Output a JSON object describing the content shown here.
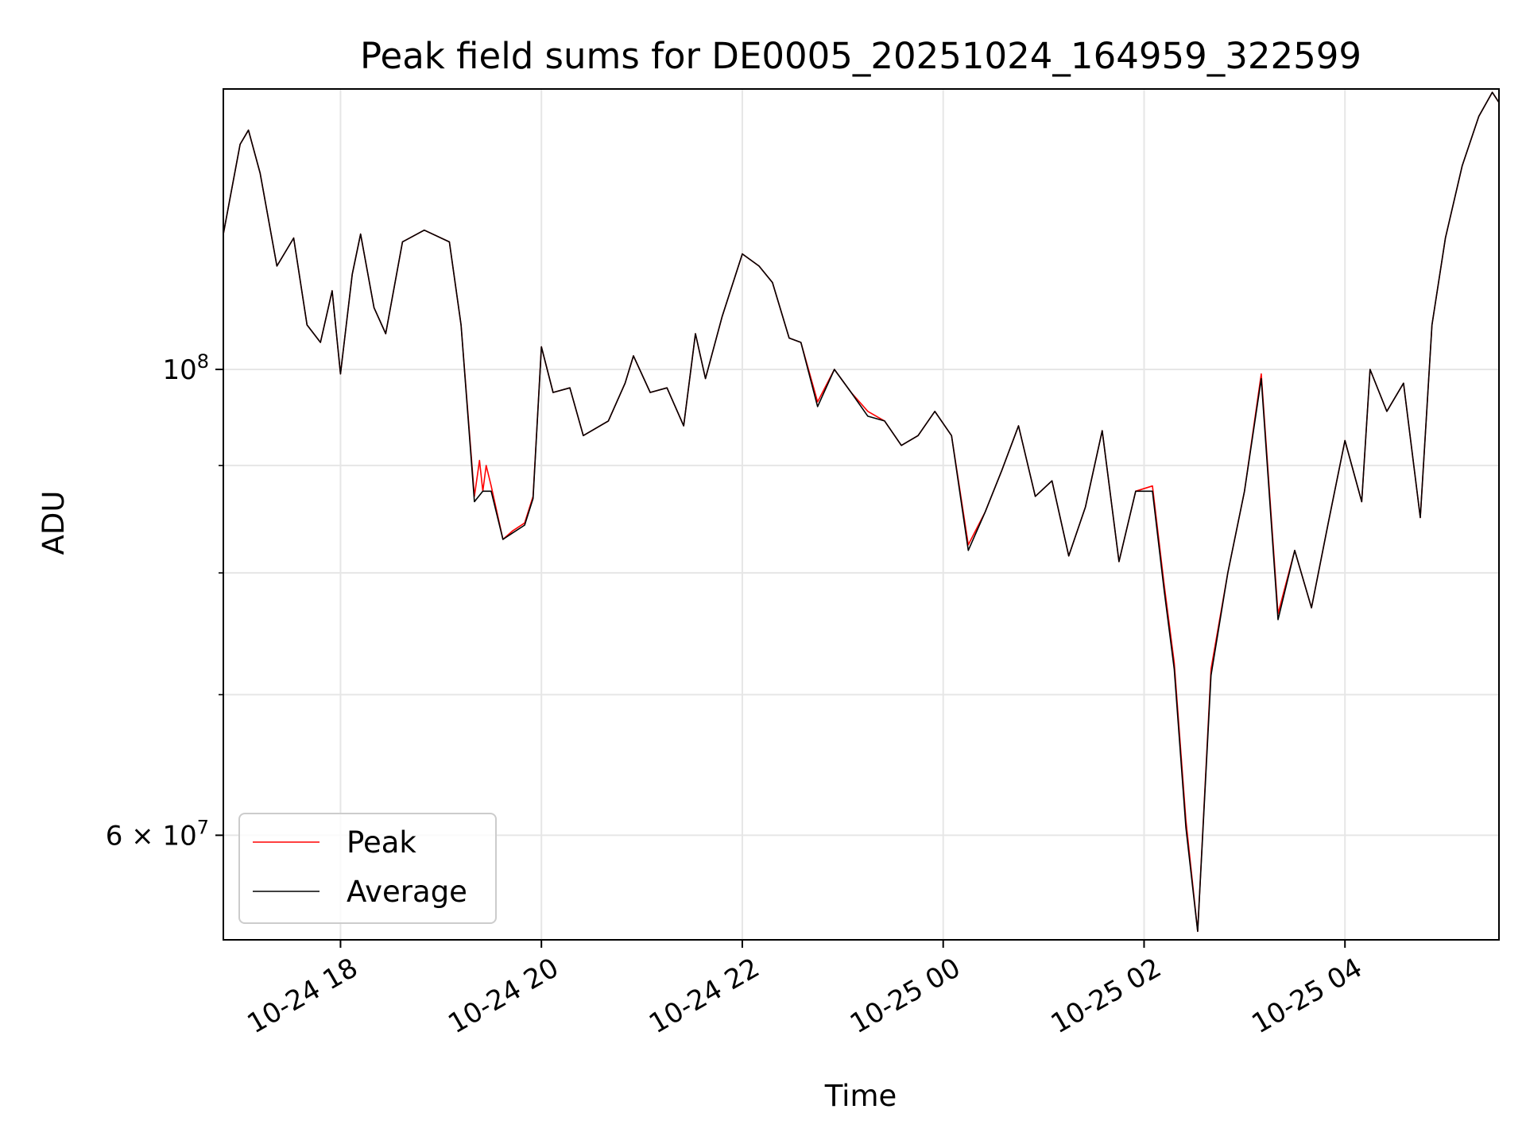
{
  "chart_data": {
    "type": "line",
    "title": "Peak field sums for DE0005_20251024_164959_322599",
    "xlabel": "Time",
    "ylabel": "ADU",
    "x_axis_type": "datetime",
    "y_scale": "log",
    "xlim": [
      "2025-10-24 16:50",
      "2025-10-25 05:32"
    ],
    "ylim": [
      53500000,
      136000000
    ],
    "grid": true,
    "legend": {
      "placement": "lower-left"
    },
    "x_ticks": [
      {
        "value": "2025-10-24 18:00",
        "label": "10-24 18"
      },
      {
        "value": "2025-10-24 20:00",
        "label": "10-24 20"
      },
      {
        "value": "2025-10-24 22:00",
        "label": "10-24 22"
      },
      {
        "value": "2025-10-25 00:00",
        "label": "10-25 00"
      },
      {
        "value": "2025-10-25 02:00",
        "label": "10-25 02"
      },
      {
        "value": "2025-10-25 04:00",
        "label": "10-25 04"
      }
    ],
    "y_major_ticks": [
      {
        "value": 60000000,
        "mantissa": "6",
        "exponent": "7",
        "times": "×",
        "base": "10"
      },
      {
        "value": 100000000,
        "mantissa": "",
        "exponent": "8",
        "times": "",
        "base": "10"
      }
    ],
    "y_minor_ticks": [
      70000000,
      80000000,
      90000000
    ],
    "series": [
      {
        "name": "Peak",
        "color": "#ff0000",
        "points": [
          [
            "2025-10-24 16:50",
            116000000.0
          ],
          [
            "2025-10-24 17:00",
            128000000.0
          ],
          [
            "2025-10-24 17:05",
            130000000.0
          ],
          [
            "2025-10-24 17:12",
            124000000.0
          ],
          [
            "2025-10-24 17:22",
            112000000.0
          ],
          [
            "2025-10-24 17:32",
            115500000.0
          ],
          [
            "2025-10-24 17:40",
            105000000.0
          ],
          [
            "2025-10-24 17:48",
            103000000.0
          ],
          [
            "2025-10-24 17:55",
            109000000.0
          ],
          [
            "2025-10-24 18:00",
            99500000.0
          ],
          [
            "2025-10-24 18:07",
            111000000.0
          ],
          [
            "2025-10-24 18:12",
            116000000.0
          ],
          [
            "2025-10-24 18:20",
            107000000.0
          ],
          [
            "2025-10-24 18:27",
            104000000.0
          ],
          [
            "2025-10-24 18:37",
            115000000.0
          ],
          [
            "2025-10-24 18:50",
            116500000.0
          ],
          [
            "2025-10-24 19:05",
            115000000.0
          ],
          [
            "2025-10-24 19:12",
            105000000.0
          ],
          [
            "2025-10-24 19:20",
            87000000.0
          ],
          [
            "2025-10-24 19:23",
            90500000.0
          ],
          [
            "2025-10-24 19:25",
            87500000.0
          ],
          [
            "2025-10-24 19:27",
            90000000.0
          ],
          [
            "2025-10-24 19:30",
            88000000.0
          ],
          [
            "2025-10-24 19:37",
            83000000.0
          ],
          [
            "2025-10-24 19:43",
            83800000.0
          ],
          [
            "2025-10-24 19:50",
            84500000.0
          ],
          [
            "2025-10-24 19:55",
            87000000.0
          ],
          [
            "2025-10-24 20:00",
            102500000.0
          ],
          [
            "2025-10-24 20:07",
            97500000.0
          ],
          [
            "2025-10-24 20:17",
            98000000.0
          ],
          [
            "2025-10-24 20:25",
            93000000.0
          ],
          [
            "2025-10-24 20:40",
            94500000.0
          ],
          [
            "2025-10-24 20:50",
            98500000.0
          ],
          [
            "2025-10-24 20:55",
            101500000.0
          ],
          [
            "2025-10-24 21:05",
            97500000.0
          ],
          [
            "2025-10-24 21:15",
            98000000.0
          ],
          [
            "2025-10-24 21:25",
            94000000.0
          ],
          [
            "2025-10-24 21:32",
            104000000.0
          ],
          [
            "2025-10-24 21:38",
            99000000.0
          ],
          [
            "2025-10-24 21:48",
            106000000.0
          ],
          [
            "2025-10-24 22:00",
            113500000.0
          ],
          [
            "2025-10-24 22:10",
            112000000.0
          ],
          [
            "2025-10-24 22:18",
            110000000.0
          ],
          [
            "2025-10-24 22:28",
            103500000.0
          ],
          [
            "2025-10-24 22:35",
            103000000.0
          ],
          [
            "2025-10-24 22:45",
            96500000.0
          ],
          [
            "2025-10-24 22:55",
            100000000.0
          ],
          [
            "2025-10-24 23:05",
            97500000.0
          ],
          [
            "2025-10-24 23:15",
            95500000.0
          ],
          [
            "2025-10-24 23:25",
            94500000.0
          ],
          [
            "2025-10-24 23:35",
            92000000.0
          ],
          [
            "2025-10-24 23:45",
            93000000.0
          ],
          [
            "2025-10-24 23:55",
            95500000.0
          ],
          [
            "2025-10-25 00:05",
            93000000.0
          ],
          [
            "2025-10-25 00:15",
            82500000.0
          ],
          [
            "2025-10-25 00:25",
            85500000.0
          ],
          [
            "2025-10-25 00:35",
            89500000.0
          ],
          [
            "2025-10-25 00:45",
            94000000.0
          ],
          [
            "2025-10-25 00:55",
            87000000.0
          ],
          [
            "2025-10-25 01:05",
            88500000.0
          ],
          [
            "2025-10-25 01:15",
            81500000.0
          ],
          [
            "2025-10-25 01:25",
            86000000.0
          ],
          [
            "2025-10-25 01:35",
            93500000.0
          ],
          [
            "2025-10-25 01:45",
            81000000.0
          ],
          [
            "2025-10-25 01:55",
            87500000.0
          ],
          [
            "2025-10-25 02:05",
            88000000.0
          ],
          [
            "2025-10-25 02:12",
            79000000.0
          ],
          [
            "2025-10-25 02:18",
            72500000.0
          ],
          [
            "2025-10-25 02:25",
            61000000.0
          ],
          [
            "2025-10-25 02:32",
            54000000.0
          ],
          [
            "2025-10-25 02:40",
            72000000.0
          ],
          [
            "2025-10-25 02:50",
            80000000.0
          ],
          [
            "2025-10-25 03:00",
            87500000.0
          ],
          [
            "2025-10-25 03:10",
            99500000.0
          ],
          [
            "2025-10-25 03:20",
            76500000.0
          ],
          [
            "2025-10-25 03:30",
            82000000.0
          ],
          [
            "2025-10-25 03:40",
            77000000.0
          ],
          [
            "2025-10-25 03:50",
            84500000.0
          ],
          [
            "2025-10-25 04:00",
            92500000.0
          ],
          [
            "2025-10-25 04:10",
            86500000.0
          ],
          [
            "2025-10-25 04:15",
            100000000.0
          ],
          [
            "2025-10-25 04:25",
            95500000.0
          ],
          [
            "2025-10-25 04:35",
            98500000.0
          ],
          [
            "2025-10-25 04:45",
            85000000.0
          ],
          [
            "2025-10-25 04:52",
            105000000.0
          ],
          [
            "2025-10-25 05:00",
            115500000.0
          ],
          [
            "2025-10-25 05:10",
            125000000.0
          ],
          [
            "2025-10-25 05:20",
            132000000.0
          ],
          [
            "2025-10-25 05:28",
            135500000.0
          ],
          [
            "2025-10-25 05:32",
            134000000.0
          ]
        ]
      },
      {
        "name": "Average",
        "color": "#000000",
        "points": [
          [
            "2025-10-24 16:50",
            116000000.0
          ],
          [
            "2025-10-24 17:00",
            128000000.0
          ],
          [
            "2025-10-24 17:05",
            130000000.0
          ],
          [
            "2025-10-24 17:12",
            124000000.0
          ],
          [
            "2025-10-24 17:22",
            112000000.0
          ],
          [
            "2025-10-24 17:32",
            115500000.0
          ],
          [
            "2025-10-24 17:40",
            105000000.0
          ],
          [
            "2025-10-24 17:48",
            103000000.0
          ],
          [
            "2025-10-24 17:55",
            109000000.0
          ],
          [
            "2025-10-24 18:00",
            99500000.0
          ],
          [
            "2025-10-24 18:07",
            111000000.0
          ],
          [
            "2025-10-24 18:12",
            116000000.0
          ],
          [
            "2025-10-24 18:20",
            107000000.0
          ],
          [
            "2025-10-24 18:27",
            104000000.0
          ],
          [
            "2025-10-24 18:37",
            115000000.0
          ],
          [
            "2025-10-24 18:50",
            116500000.0
          ],
          [
            "2025-10-24 19:05",
            115000000.0
          ],
          [
            "2025-10-24 19:12",
            105000000.0
          ],
          [
            "2025-10-24 19:20",
            86500000.0
          ],
          [
            "2025-10-24 19:25",
            87500000.0
          ],
          [
            "2025-10-24 19:30",
            87500000.0
          ],
          [
            "2025-10-24 19:37",
            83000000.0
          ],
          [
            "2025-10-24 19:43",
            83600000.0
          ],
          [
            "2025-10-24 19:50",
            84300000.0
          ],
          [
            "2025-10-24 19:55",
            86800000.0
          ],
          [
            "2025-10-24 20:00",
            102500000.0
          ],
          [
            "2025-10-24 20:07",
            97500000.0
          ],
          [
            "2025-10-24 20:17",
            98000000.0
          ],
          [
            "2025-10-24 20:25",
            93000000.0
          ],
          [
            "2025-10-24 20:40",
            94500000.0
          ],
          [
            "2025-10-24 20:50",
            98500000.0
          ],
          [
            "2025-10-24 20:55",
            101500000.0
          ],
          [
            "2025-10-24 21:05",
            97500000.0
          ],
          [
            "2025-10-24 21:15",
            98000000.0
          ],
          [
            "2025-10-24 21:25",
            94000000.0
          ],
          [
            "2025-10-24 21:32",
            104000000.0
          ],
          [
            "2025-10-24 21:38",
            99000000.0
          ],
          [
            "2025-10-24 21:48",
            106000000.0
          ],
          [
            "2025-10-24 22:00",
            113500000.0
          ],
          [
            "2025-10-24 22:10",
            112000000.0
          ],
          [
            "2025-10-24 22:18",
            110000000.0
          ],
          [
            "2025-10-24 22:28",
            103500000.0
          ],
          [
            "2025-10-24 22:35",
            103000000.0
          ],
          [
            "2025-10-24 22:45",
            96000000.0
          ],
          [
            "2025-10-24 22:55",
            100000000.0
          ],
          [
            "2025-10-24 23:05",
            97500000.0
          ],
          [
            "2025-10-24 23:15",
            95000000.0
          ],
          [
            "2025-10-24 23:25",
            94500000.0
          ],
          [
            "2025-10-24 23:35",
            92000000.0
          ],
          [
            "2025-10-24 23:45",
            93000000.0
          ],
          [
            "2025-10-24 23:55",
            95500000.0
          ],
          [
            "2025-10-25 00:05",
            93000000.0
          ],
          [
            "2025-10-25 00:15",
            82000000.0
          ],
          [
            "2025-10-25 00:25",
            85500000.0
          ],
          [
            "2025-10-25 00:35",
            89500000.0
          ],
          [
            "2025-10-25 00:45",
            94000000.0
          ],
          [
            "2025-10-25 00:55",
            87000000.0
          ],
          [
            "2025-10-25 01:05",
            88500000.0
          ],
          [
            "2025-10-25 01:15",
            81500000.0
          ],
          [
            "2025-10-25 01:25",
            86000000.0
          ],
          [
            "2025-10-25 01:35",
            93500000.0
          ],
          [
            "2025-10-25 01:45",
            81000000.0
          ],
          [
            "2025-10-25 01:55",
            87500000.0
          ],
          [
            "2025-10-25 02:05",
            87500000.0
          ],
          [
            "2025-10-25 02:12",
            78500000.0
          ],
          [
            "2025-10-25 02:18",
            72000000.0
          ],
          [
            "2025-10-25 02:25",
            60500000.0
          ],
          [
            "2025-10-25 02:32",
            54000000.0
          ],
          [
            "2025-10-25 02:40",
            71500000.0
          ],
          [
            "2025-10-25 02:50",
            80000000.0
          ],
          [
            "2025-10-25 03:00",
            87500000.0
          ],
          [
            "2025-10-25 03:10",
            99000000.0
          ],
          [
            "2025-10-25 03:20",
            76000000.0
          ],
          [
            "2025-10-25 03:30",
            82000000.0
          ],
          [
            "2025-10-25 03:40",
            77000000.0
          ],
          [
            "2025-10-25 03:50",
            84500000.0
          ],
          [
            "2025-10-25 04:00",
            92500000.0
          ],
          [
            "2025-10-25 04:10",
            86500000.0
          ],
          [
            "2025-10-25 04:15",
            100000000.0
          ],
          [
            "2025-10-25 04:25",
            95500000.0
          ],
          [
            "2025-10-25 04:35",
            98500000.0
          ],
          [
            "2025-10-25 04:45",
            85000000.0
          ],
          [
            "2025-10-25 04:52",
            105000000.0
          ],
          [
            "2025-10-25 05:00",
            115500000.0
          ],
          [
            "2025-10-25 05:10",
            125000000.0
          ],
          [
            "2025-10-25 05:20",
            132000000.0
          ],
          [
            "2025-10-25 05:28",
            135500000.0
          ],
          [
            "2025-10-25 05:32",
            134000000.0
          ]
        ]
      }
    ]
  }
}
